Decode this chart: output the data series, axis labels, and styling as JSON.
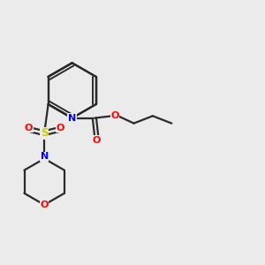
{
  "background_color": "#ebebeb",
  "bond_color": "#2a2a2a",
  "bond_width": 1.6,
  "atom_colors": {
    "N": "#0000ff",
    "O": "#ff0000",
    "S": "#cccc00"
  },
  "figsize": [
    3.0,
    3.0
  ],
  "dpi": 100,
  "xlim": [
    0,
    10
  ],
  "ylim": [
    0,
    10
  ]
}
